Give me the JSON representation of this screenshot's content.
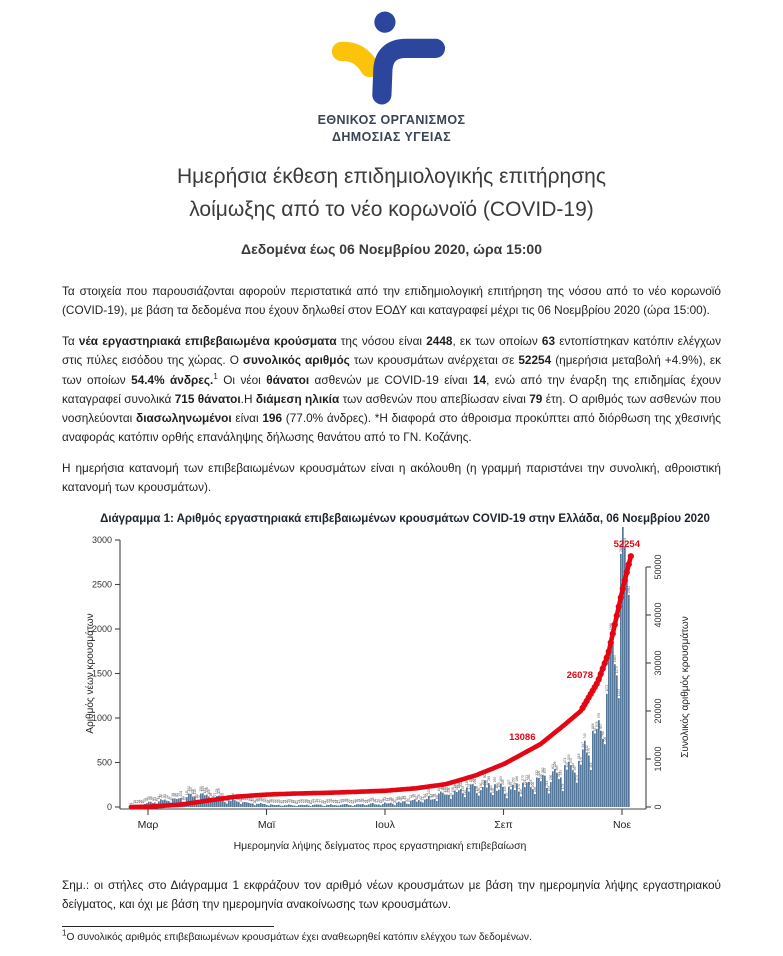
{
  "logo": {
    "org_line1": "ΕΘΝΙΚΟΣ ΟΡΓΑΝΙΣΜΟΣ",
    "org_line2": "ΔΗΜΟΣΙΑΣ ΥΓΕΙΑΣ",
    "blue": "#2b469c",
    "yellow": "#fcc30b"
  },
  "header": {
    "title_line1": "Ημερήσια έκθεση επιδημιολογικής επιτήρησης",
    "title_line2": "λοίμωξης από το νέο κορωνοϊό (COVID-19)",
    "subtitle": "Δεδομένα έως 06 Νοεμβρίου 2020, ώρα 15:00"
  },
  "paragraphs": {
    "p1": [
      {
        "t": "Τα στοιχεία που παρουσιάζονται αφορούν περιστατικά από την επιδημιολογική επιτήρηση της νόσου από το νέο κορωνοϊό (COVID-19), με βάση τα δεδομένα που έχουν δηλωθεί στον ΕΟΔΥ και καταγραφεί μέχρι τις 06 Νοεμβρίου 2020 (ώρα 15:00)."
      }
    ],
    "p2": [
      {
        "t": "Τα "
      },
      {
        "t": "νέα εργαστηριακά επιβεβαιωμένα κρούσματα",
        "b": 1
      },
      {
        "t": " της νόσου είναι "
      },
      {
        "t": "2448",
        "b": 1
      },
      {
        "t": ", εκ των οποίων "
      },
      {
        "t": "63",
        "b": 1
      },
      {
        "t": " εντοπίστηκαν κατόπιν ελέγχων στις πύλες εισόδου της χώρας. Ο "
      },
      {
        "t": "συνολικός αριθμός",
        "b": 1
      },
      {
        "t": " των κρουσμάτων ανέρχεται σε "
      },
      {
        "t": "52254",
        "b": 1
      },
      {
        "t": " (ημερήσια μεταβολή +4.9%), εκ των οποίων "
      },
      {
        "t": "54.4% άνδρες.",
        "b": 1
      },
      {
        "t": "1",
        "sup": 1
      },
      {
        "t": " Οι νέοι "
      },
      {
        "t": "θάνατοι",
        "b": 1
      },
      {
        "t": " ασθενών με COVID-19 είναι "
      },
      {
        "t": "14",
        "b": 1
      },
      {
        "t": ", ενώ από την έναρξη της επιδημίας έχουν καταγραφεί συνολικά "
      },
      {
        "t": "715 θάνατοι",
        "b": 1
      },
      {
        "t": ".Η "
      },
      {
        "t": "διάμεση ηλικία",
        "b": 1
      },
      {
        "t": " των ασθενών που απεβίωσαν είναι "
      },
      {
        "t": "79",
        "b": 1
      },
      {
        "t": " έτη. Ο αριθμός των ασθενών που νοσηλεύονται "
      },
      {
        "t": "διασωληνωμένοι",
        "b": 1
      },
      {
        "t": " είναι "
      },
      {
        "t": "196",
        "b": 1
      },
      {
        "t": " (77.0% άνδρες). *Η διαφορά στο άθροισμα προκύπτει από διόρθωση της χθεσινής αναφοράς κατόπιν ορθής επανάληψης δήλωσης θανάτου από το ΓΝ. Κοζάνης."
      }
    ],
    "p3": [
      {
        "t": "Η ημερήσια κατανομή των επιβεβαιωμένων κρουσμάτων είναι η ακόλουθη (η γραμμή παριστάνει την συνολική, αθροιστική κατανομή των κρουσμάτων)."
      }
    ],
    "note": [
      {
        "t": "Σημ.: οι στήλες στο Διάγραμμα 1 εκφράζουν τον αριθμό νέων κρουσμάτων με βάση την ημερομηνία λήψης εργαστηριακού δείγματος, και όχι με βάση την ημερομηνία ανακοίνωσης των κρουσμάτων."
      }
    ],
    "footnote": [
      {
        "t": "1",
        "sup": 1
      },
      {
        "t": "Ο συνολικός αριθμός επιβεβαιωμένων κρουσμάτων έχει αναθεωρηθεί κατόπιν ελέγχου των δεδομένων."
      }
    ]
  },
  "chart_data": {
    "type": "bar",
    "overlay": "line",
    "description": "Daily new laboratory-confirmed COVID-19 cases (bars, left axis) with cumulative total (red line, right axis), late Feb – 06 Nov 2020",
    "title": "Διάγραμμα 1: Αριθμός εργαστηριακά επιβεβαιωμένων κρουσμάτων COVID-19 στην Ελλάδα, 06 Νοεμβρίου 2020",
    "xlabel": "Ημερομηνία λήψης δείγματος προς εργαστηριακή επιβεβαίωση",
    "ylabel_left": "Αριθμός νέων κρουσμάτων",
    "ylabel_right": "Συνολικός αριθμός κρουσμάτων",
    "x_tick_labels": [
      "Μαρ",
      "Μαϊ",
      "Ιουλ",
      "Σεπ",
      "Νοε"
    ],
    "x_tick_pos": [
      0.036,
      0.273,
      0.51,
      0.747,
      0.984
    ],
    "y_left_ticks": [
      0,
      500,
      1000,
      1500,
      2000,
      2500,
      3000
    ],
    "y_left_max": 3000,
    "y_right_ticks": [
      0,
      10000,
      20000,
      30000,
      40000,
      50000
    ],
    "y_right_max": 50000,
    "colors": {
      "bar": "#56789b",
      "line": "#e30613",
      "axis": "#444444",
      "bar_label": "#555555",
      "tick_text": "#333333"
    },
    "annotations": [
      {
        "text": "13086",
        "value": 13086,
        "t": 0.819
      },
      {
        "text": "26078",
        "value": 26078,
        "t": 0.934
      },
      {
        "text": "52254",
        "value": 52254,
        "t": 1.0
      }
    ],
    "n_bars": 250,
    "weekday_factors": [
      1.0,
      1.06,
      1.1,
      1.04,
      0.97,
      0.72,
      0.55
    ],
    "daily_new_envelope": [
      [
        0,
        4
      ],
      [
        0.05,
        60
      ],
      [
        0.09,
        95
      ],
      [
        0.13,
        130
      ],
      [
        0.17,
        110
      ],
      [
        0.21,
        70
      ],
      [
        0.25,
        45
      ],
      [
        0.29,
        25
      ],
      [
        0.35,
        22
      ],
      [
        0.41,
        25
      ],
      [
        0.47,
        30
      ],
      [
        0.53,
        45
      ],
      [
        0.59,
        80
      ],
      [
        0.63,
        150
      ],
      [
        0.68,
        210
      ],
      [
        0.72,
        230
      ],
      [
        0.75,
        210
      ],
      [
        0.78,
        230
      ],
      [
        0.81,
        280
      ],
      [
        0.84,
        310
      ],
      [
        0.87,
        400
      ],
      [
        0.9,
        520
      ],
      [
        0.92,
        700
      ],
      [
        0.94,
        900
      ],
      [
        0.955,
        1300
      ],
      [
        0.968,
        1800
      ],
      [
        0.978,
        2300
      ],
      [
        0.988,
        2750
      ],
      [
        0.995,
        2500
      ],
      [
        1,
        2200
      ]
    ],
    "cumulative_anchors": [
      [
        0,
        0
      ],
      [
        0.036,
        60
      ],
      [
        0.1,
        500
      ],
      [
        0.155,
        1350
      ],
      [
        0.21,
        2150
      ],
      [
        0.273,
        2600
      ],
      [
        0.33,
        2800
      ],
      [
        0.39,
        2950
      ],
      [
        0.45,
        3150
      ],
      [
        0.51,
        3400
      ],
      [
        0.57,
        3900
      ],
      [
        0.63,
        4750
      ],
      [
        0.69,
        6600
      ],
      [
        0.747,
        9000
      ],
      [
        0.8,
        12000
      ],
      [
        0.819,
        13086
      ],
      [
        0.86,
        16500
      ],
      [
        0.9,
        20000
      ],
      [
        0.934,
        26078
      ],
      [
        0.955,
        32000
      ],
      [
        0.97,
        39000
      ],
      [
        0.985,
        46000
      ],
      [
        1,
        52254
      ]
    ]
  }
}
